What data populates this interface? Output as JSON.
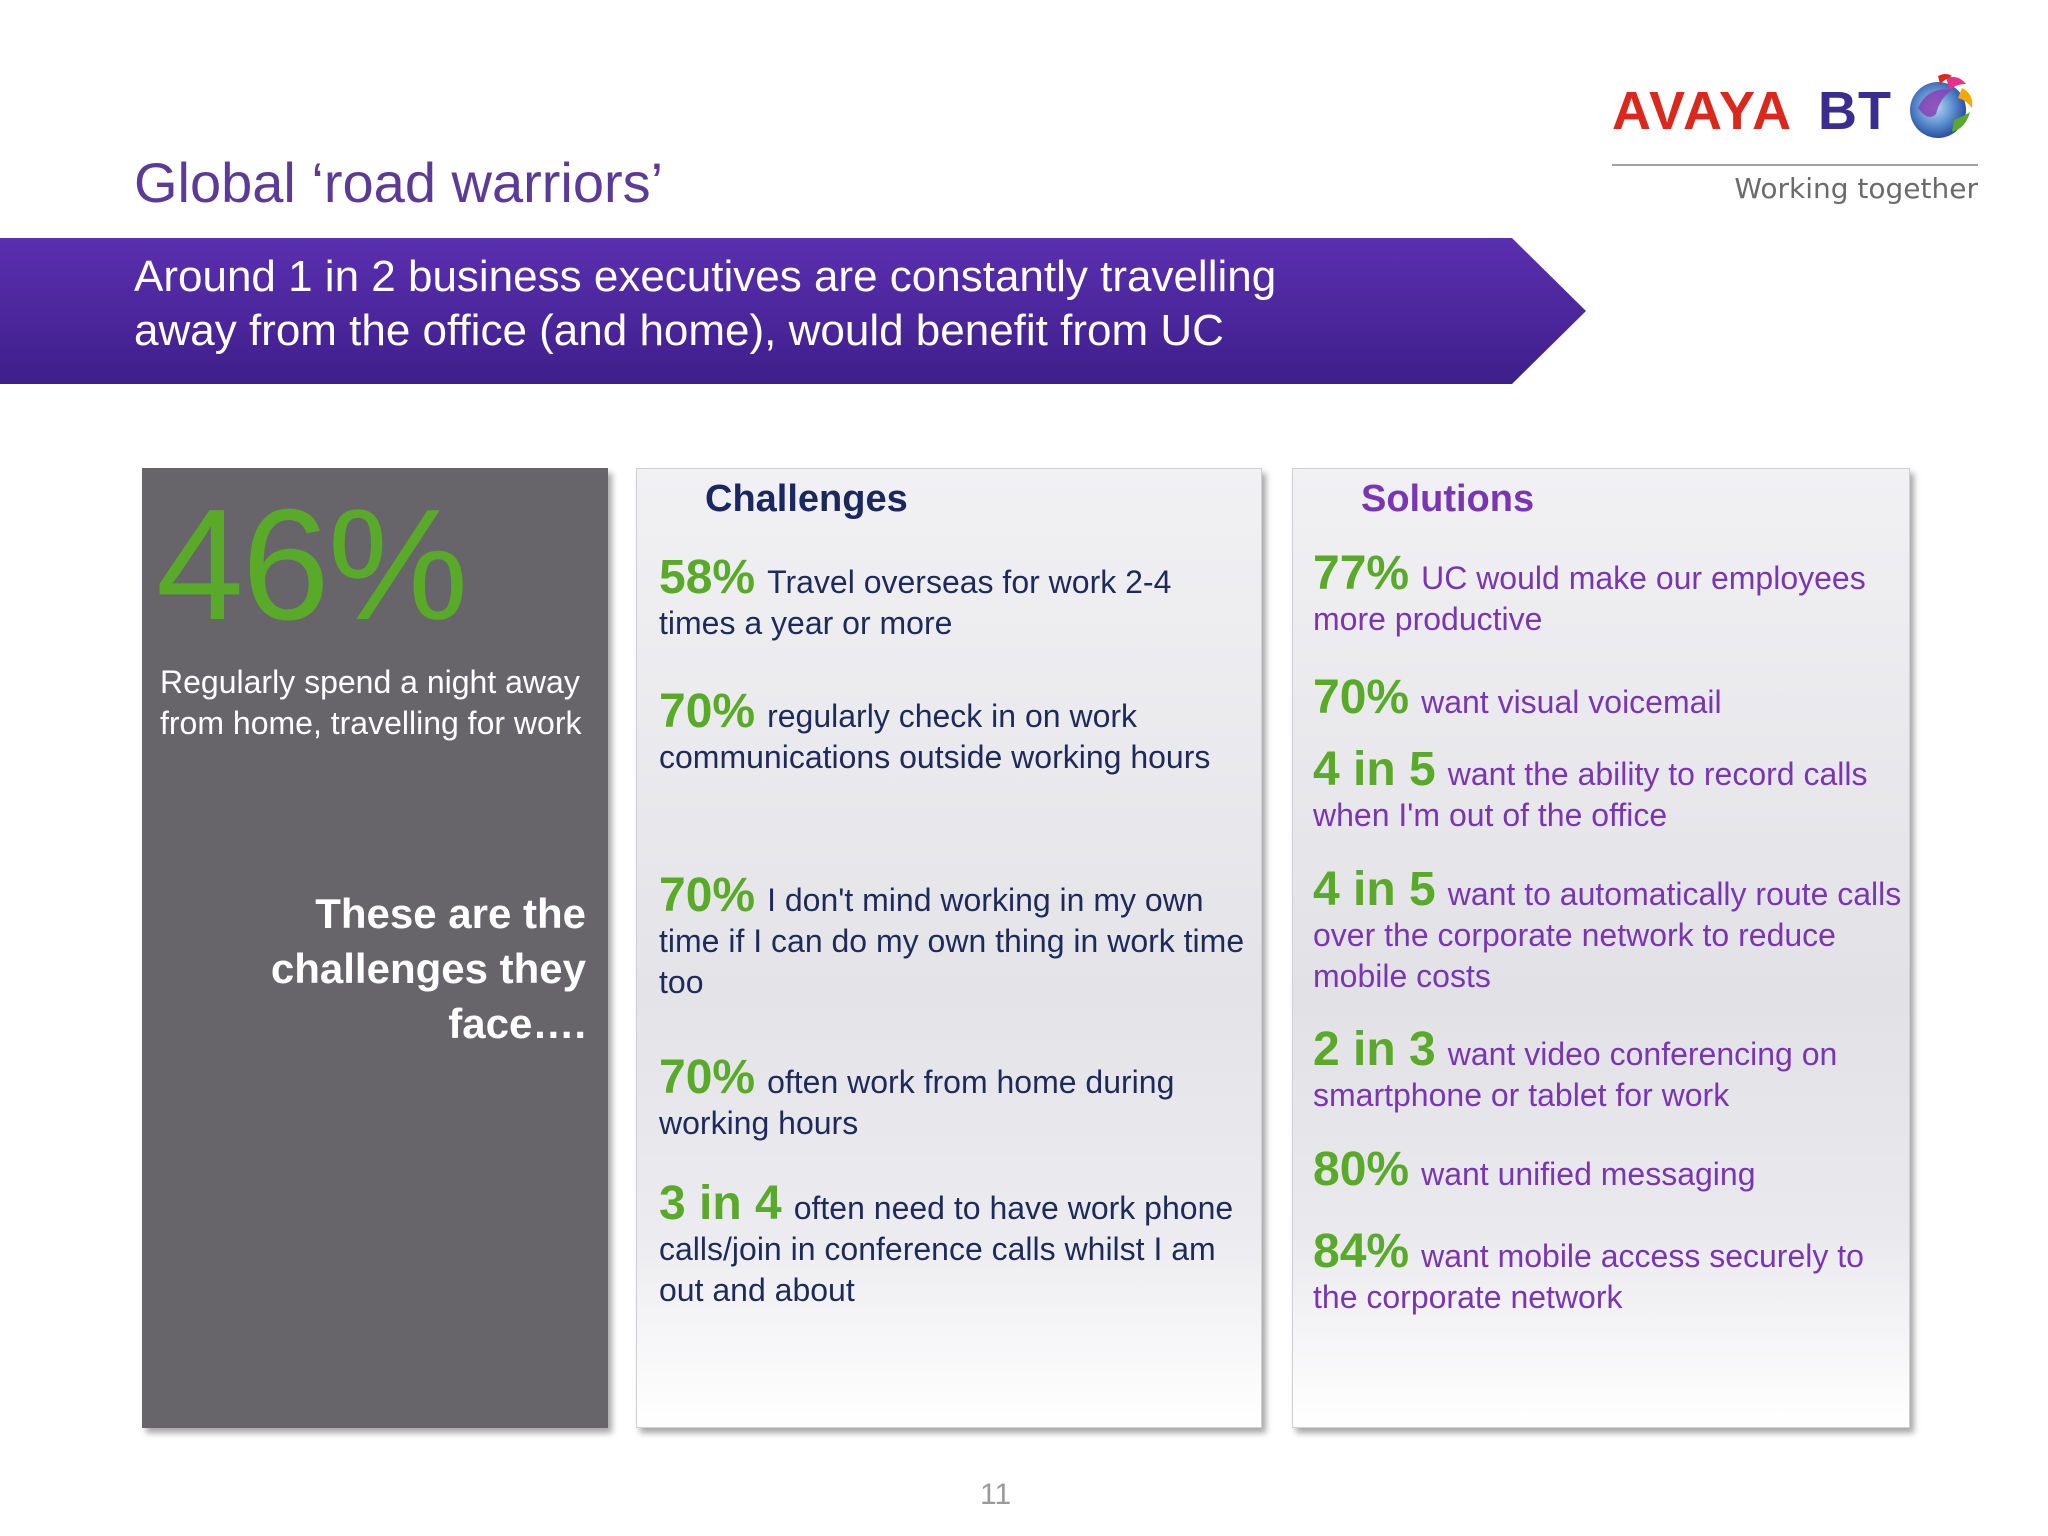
{
  "logos": {
    "avaya": "AVAYA",
    "bt": "BT",
    "tagline": "Working together"
  },
  "title": "Global ‘road warriors’",
  "banner": {
    "line1": "Around 1 in 2 business executives are constantly travelling",
    "line2": "away from the office (and home), would benefit from UC"
  },
  "stat_panel": {
    "figure": "46%",
    "caption": "Regularly spend a night away from home, travelling for work",
    "tagline_line1": "These are the",
    "tagline_line2": "challenges they",
    "tagline_line3": "face…."
  },
  "challenges": {
    "heading": "Challenges",
    "items": [
      {
        "figure": "58%",
        "text": "Travel overseas for work 2-4 times a year or more"
      },
      {
        "figure": "70%",
        "text": "regularly check in on work communications outside working hours"
      },
      {
        "figure": "70%",
        "text": "I don't mind working in my own time if I can do my own thing in work time too"
      },
      {
        "figure": "70%",
        "text": "often work from home during working hours"
      },
      {
        "figure": "3 in 4",
        "text": "often need to have work phone calls/join in conference calls whilst I am out and about"
      }
    ]
  },
  "solutions": {
    "heading": "Solutions",
    "items": [
      {
        "figure": "77%",
        "text": "UC would make our employees more productive"
      },
      {
        "figure": "70%",
        "text": "want visual voicemail"
      },
      {
        "figure": "4 in 5",
        "text": "want the ability to record calls when I'm out of the office"
      },
      {
        "figure": "4 in 5",
        "text": "want to automatically route calls over the corporate network to reduce mobile costs"
      },
      {
        "figure": "2 in 3",
        "text": "want video conferencing on smartphone or tablet for work"
      },
      {
        "figure": "80%",
        "text": "want unified messaging"
      },
      {
        "figure": "84%",
        "text": "want mobile access securely to the corporate network"
      }
    ]
  },
  "page_number": "11",
  "colors": {
    "title": "#5c3a97",
    "banner_dark": "#3e1f8a",
    "banner_light": "#5a2fb0",
    "figure_green": "#5aaa2a",
    "challenge_text": "#1e2a5a",
    "solution_text": "#7a35b3",
    "stat_panel_bg": "#67656a",
    "avaya_red": "#da291c",
    "bt_blue": "#3a2d8f"
  }
}
